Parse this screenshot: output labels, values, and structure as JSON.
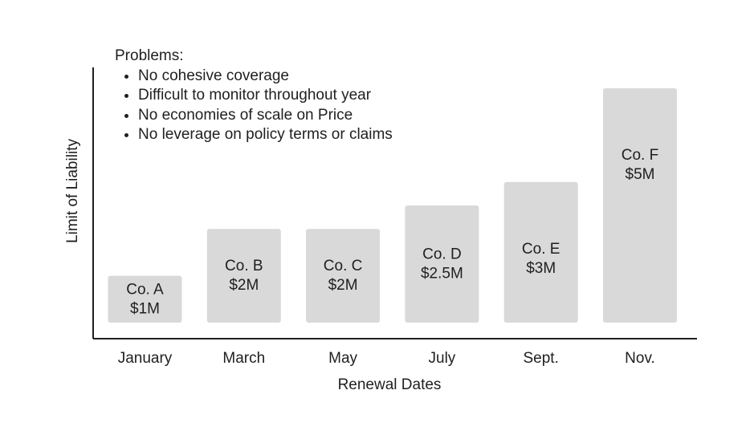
{
  "chart_data": {
    "type": "bar",
    "title": "",
    "xlabel": "Renewal Dates",
    "ylabel": "Limit of Liability",
    "categories": [
      "January",
      "March",
      "May",
      "July",
      "Sept.",
      "Nov."
    ],
    "companies": [
      "Co. A",
      "Co. B",
      "Co. C",
      "Co. D",
      "Co. E",
      "Co. F"
    ],
    "value_labels": [
      "$1M",
      "$2M",
      "$2M",
      "$2.5M",
      "$3M",
      "$5M"
    ],
    "values": [
      1,
      2,
      2,
      2.5,
      3,
      5
    ],
    "units": "$M",
    "ylim": [
      0,
      5.5
    ],
    "grid": false,
    "legend": "none",
    "bar_color": "#d9d9d9",
    "axis_color": "#1f1f1f",
    "annotation": {
      "title": "Problems:",
      "items": [
        "No cohesive coverage",
        "Difficult to monitor throughout year",
        "No economies of scale on Price",
        "No leverage on policy terms or claims"
      ]
    }
  }
}
